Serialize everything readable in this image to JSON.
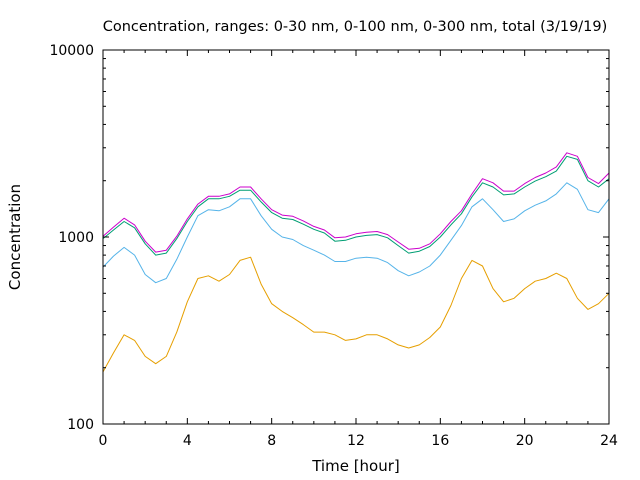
{
  "chart_data": {
    "type": "line",
    "title": "Concentration, ranges: 0-30 nm, 0-100 nm, 0-300 nm, total (3/19/19)",
    "xlabel": "Time [hour]",
    "ylabel": "Concentration",
    "xlim": [
      0,
      24
    ],
    "ylim": [
      100,
      10000
    ],
    "yscale": "log",
    "grid": false,
    "legend": "none",
    "xticks": [
      0,
      4,
      8,
      12,
      16,
      20,
      24
    ],
    "xtick_labels": [
      "0",
      "4",
      "8",
      "12",
      "16",
      "20",
      "24"
    ],
    "yticks": [
      100,
      1000,
      10000
    ],
    "ytick_labels": [
      "100",
      "1000",
      "10000"
    ],
    "x": [
      0,
      0.5,
      1,
      1.5,
      2,
      2.5,
      3,
      3.5,
      4,
      4.5,
      5,
      5.5,
      6,
      6.5,
      7,
      7.5,
      8,
      8.5,
      9,
      9.5,
      10,
      10.5,
      11,
      11.5,
      12,
      12.5,
      13,
      13.5,
      14,
      14.5,
      15,
      15.5,
      16,
      16.5,
      17,
      17.5,
      18,
      18.5,
      19,
      19.5,
      20,
      20.5,
      21,
      21.5,
      22,
      22.5,
      23,
      23.5,
      24
    ],
    "series": [
      {
        "color": "#e69f00",
        "values": [
          190,
          240,
          300,
          280,
          230,
          210,
          230,
          310,
          450,
          600,
          620,
          580,
          630,
          750,
          780,
          560,
          440,
          400,
          370,
          340,
          310,
          310,
          300,
          280,
          285,
          300,
          300,
          285,
          265,
          255,
          265,
          290,
          330,
          430,
          600,
          750,
          700,
          530,
          450,
          470,
          530,
          580,
          600,
          640,
          600,
          470,
          410,
          440,
          500
        ]
      },
      {
        "color": "#56b4e9",
        "values": [
          690,
          790,
          880,
          800,
          630,
          570,
          600,
          760,
          1000,
          1300,
          1400,
          1380,
          1450,
          1600,
          1600,
          1300,
          1100,
          1000,
          970,
          900,
          850,
          800,
          740,
          740,
          770,
          780,
          770,
          730,
          660,
          620,
          650,
          700,
          800,
          960,
          1150,
          1450,
          1600,
          1400,
          1210,
          1250,
          1380,
          1480,
          1560,
          1700,
          1950,
          1800,
          1400,
          1350,
          1600
        ]
      },
      {
        "color": "#009e73",
        "values": [
          980,
          1090,
          1210,
          1120,
          920,
          800,
          820,
          980,
          1210,
          1450,
          1600,
          1600,
          1650,
          1780,
          1780,
          1540,
          1350,
          1260,
          1240,
          1170,
          1100,
          1050,
          950,
          960,
          1000,
          1020,
          1030,
          990,
          900,
          820,
          840,
          890,
          1000,
          1160,
          1330,
          1640,
          1950,
          1850,
          1680,
          1700,
          1850,
          1990,
          2100,
          2250,
          2700,
          2600,
          2000,
          1850,
          2050
        ]
      },
      {
        "color": "#cc00cc",
        "values": [
          1010,
          1130,
          1260,
          1160,
          950,
          830,
          850,
          1010,
          1250,
          1500,
          1650,
          1650,
          1700,
          1850,
          1850,
          1600,
          1400,
          1310,
          1290,
          1220,
          1140,
          1090,
          990,
          1000,
          1040,
          1060,
          1070,
          1030,
          940,
          860,
          870,
          920,
          1040,
          1210,
          1380,
          1700,
          2050,
          1950,
          1760,
          1760,
          1930,
          2080,
          2200,
          2370,
          2820,
          2700,
          2080,
          1930,
          2200
        ]
      }
    ]
  }
}
